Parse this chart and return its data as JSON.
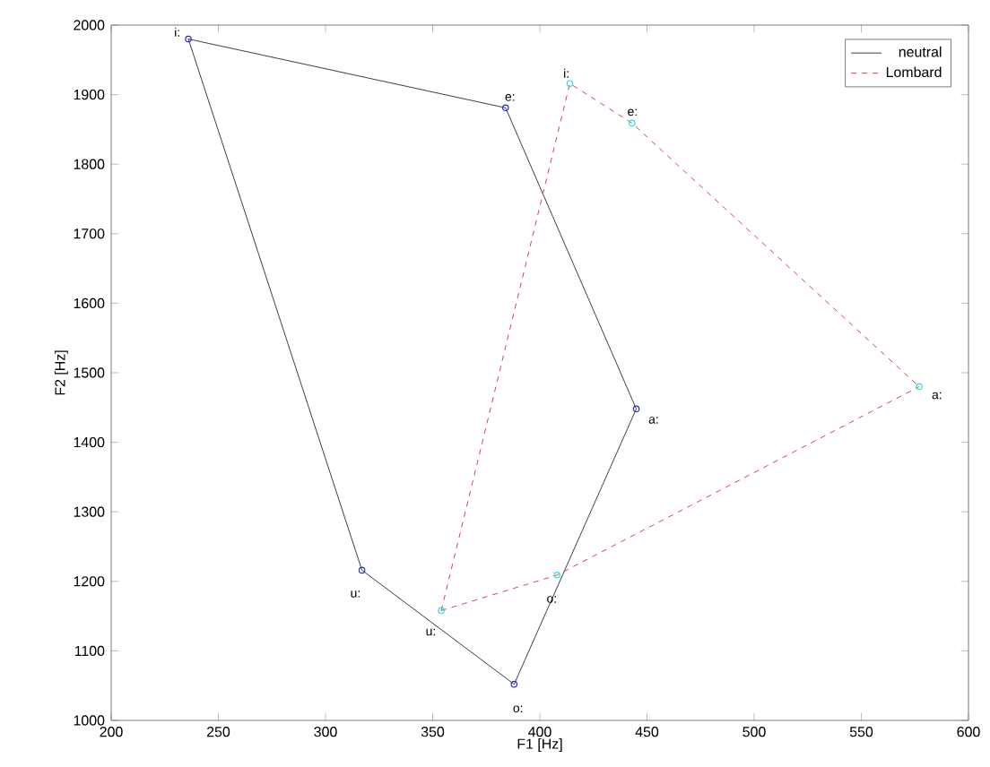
{
  "chart_data": {
    "type": "line",
    "xlabel": "F1 [Hz]",
    "ylabel": "F2 [Hz]",
    "xlim": [
      200,
      600
    ],
    "ylim": [
      1000,
      2000
    ],
    "xticks": [
      200,
      250,
      300,
      350,
      400,
      450,
      500,
      550,
      600
    ],
    "yticks": [
      1000,
      1100,
      1200,
      1300,
      1400,
      1500,
      1600,
      1700,
      1800,
      1900,
      2000
    ],
    "grid": false,
    "legend": "top right",
    "series": [
      {
        "name": "neutral",
        "color": "#3c3c50",
        "line_style": "solid",
        "marker": "none",
        "x": [
          236,
          384,
          445
        ],
        "values": [
          1980,
          1881,
          1448
        ]
      },
      {
        "color": "#3c3c50",
        "line_style": "solid",
        "marker": "none",
        "x": [
          236,
          317,
          388,
          445
        ],
        "values": [
          1980,
          1216,
          1052,
          1448
        ]
      },
      {
        "type": "scatter",
        "color": "#2a2ad0",
        "marker": "circle",
        "x": [
          236,
          384,
          445,
          388,
          317
        ],
        "values": [
          1980,
          1881,
          1448,
          1052,
          1216
        ]
      },
      {
        "name": "Lombard",
        "color": "#e04040",
        "line_style": "dashed",
        "marker": "none",
        "x": [
          354,
          414,
          443,
          577
        ],
        "values": [
          1158,
          1916,
          1859,
          1480
        ]
      },
      {
        "color": "#e04040",
        "line_style": "dashed",
        "marker": "none",
        "x": [
          354,
          408,
          577
        ],
        "values": [
          1158,
          1209,
          1480
        ]
      },
      {
        "type": "scatter",
        "color": "#20e0e8",
        "marker": "circle",
        "x": [
          354,
          414,
          443,
          577,
          408
        ],
        "values": [
          1158,
          1916,
          1859,
          1480,
          1209
        ]
      }
    ],
    "annotations": [
      {
        "text": "i:",
        "x": 236,
        "y": 1980
      },
      {
        "text": "e:",
        "x": 384,
        "y": 1881
      },
      {
        "text": "i:",
        "x": 414,
        "y": 1916
      },
      {
        "text": "e:",
        "x": 443,
        "y": 1859
      },
      {
        "text": "a:",
        "x": 445,
        "y": 1448
      },
      {
        "text": "a:",
        "x": 577,
        "y": 1480
      },
      {
        "text": "u:",
        "x": 317,
        "y": 1216
      },
      {
        "text": "u:",
        "x": 354,
        "y": 1158
      },
      {
        "text": "o:",
        "x": 408,
        "y": 1209
      },
      {
        "text": "o:",
        "x": 388,
        "y": 1052
      }
    ]
  }
}
